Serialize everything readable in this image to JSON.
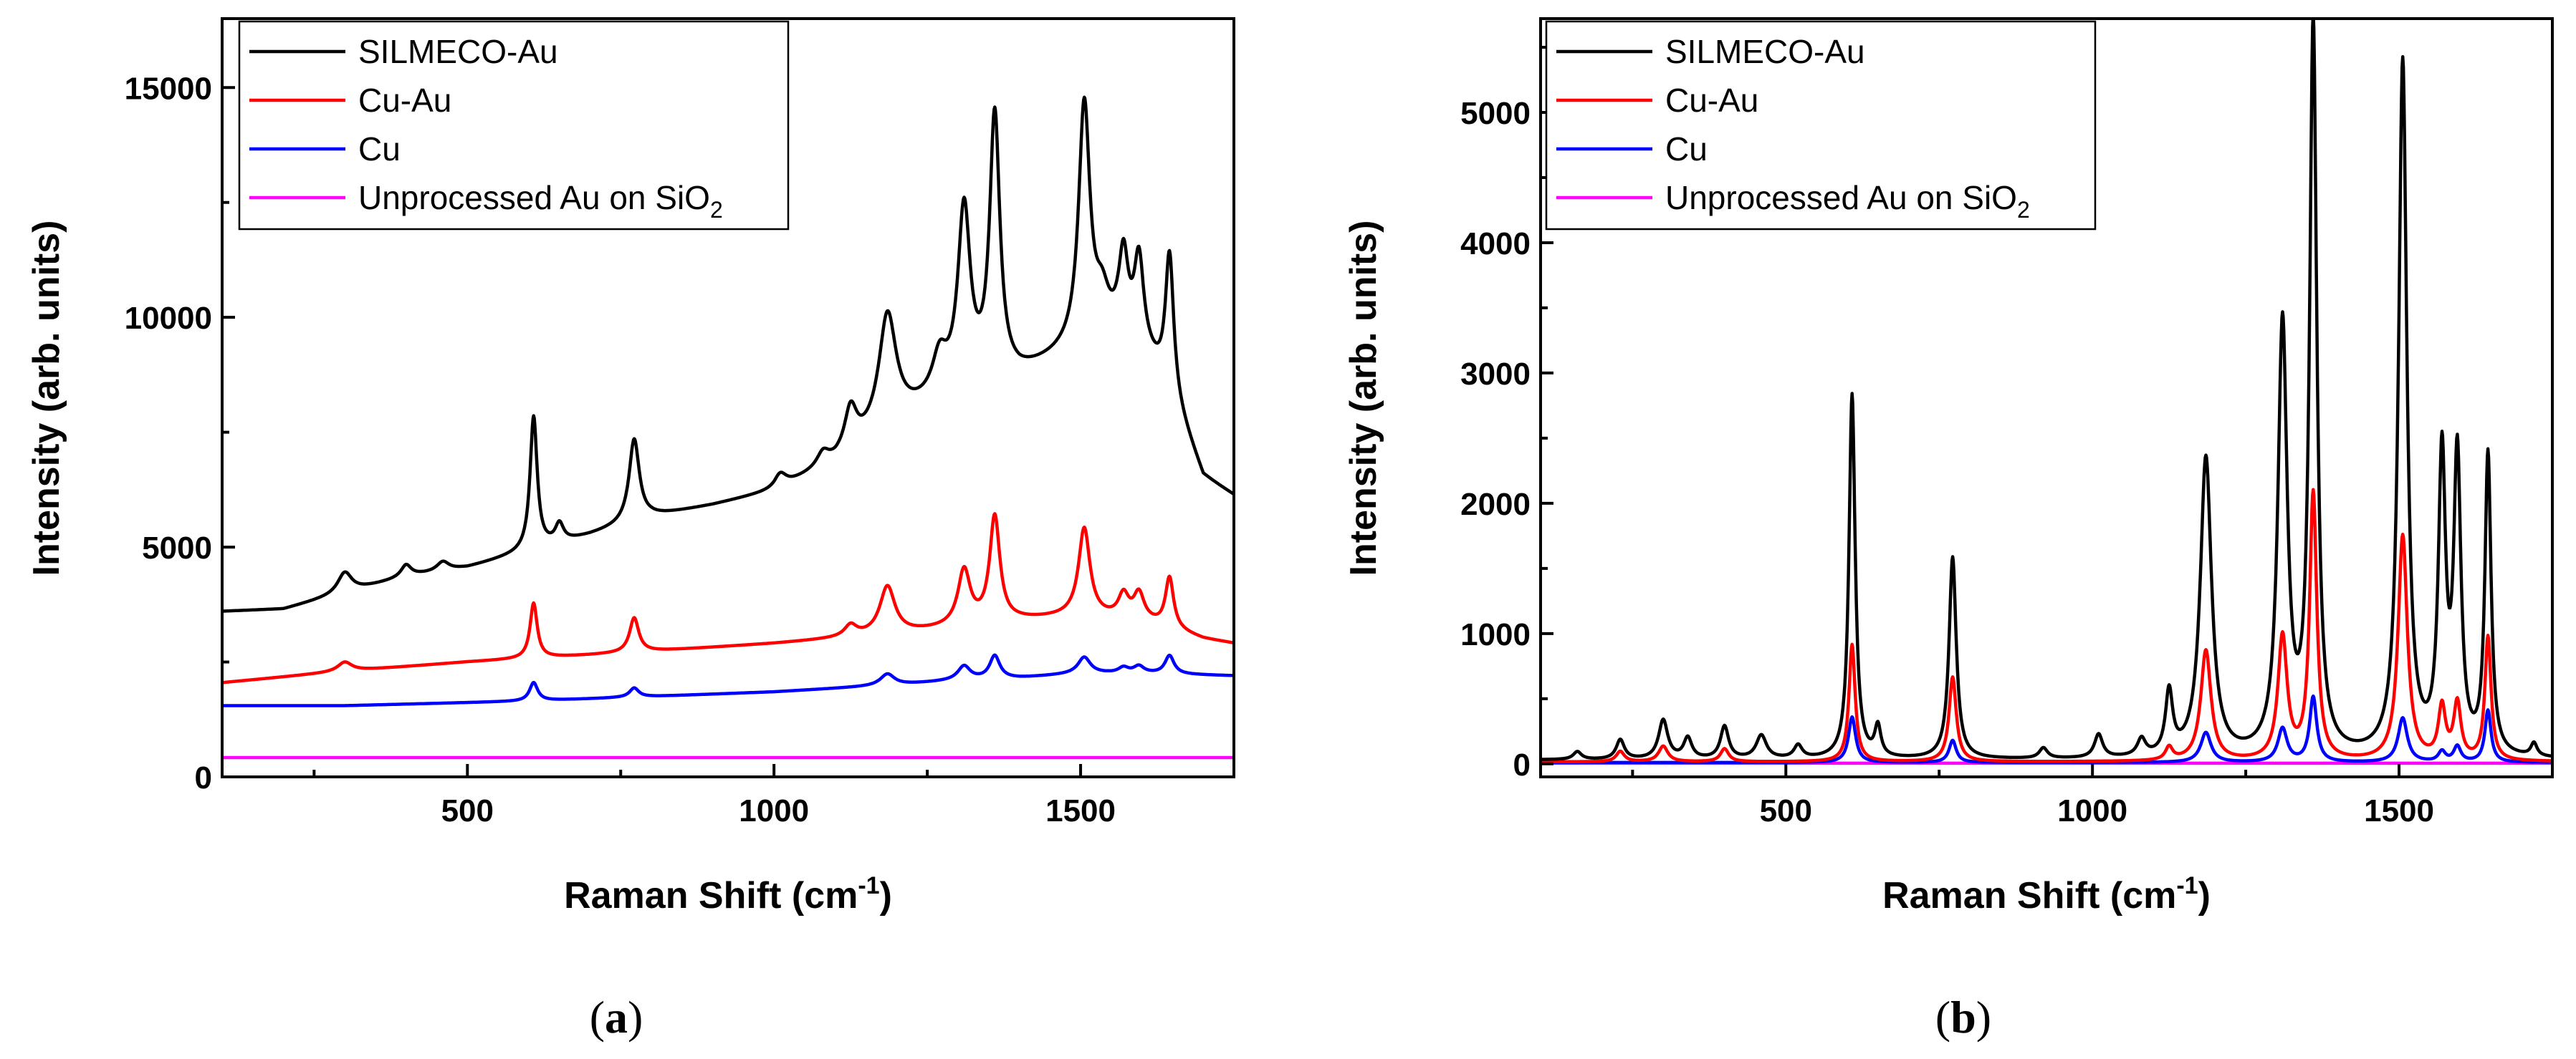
{
  "chart_data": [
    {
      "type": "line",
      "panel": "a",
      "panel_label": "(a)",
      "xlabel": "Raman Shift (cm",
      "xlabel_sup": "-1",
      "xlabel_end": ")",
      "ylabel": "Intensity (arb. units)",
      "xlim": [
        100,
        1750
      ],
      "ylim": [
        0,
        16500
      ],
      "xticks": [
        500,
        1000,
        1500
      ],
      "xtick_labels": [
        "500",
        "1000",
        "1500"
      ],
      "yticks": [
        0,
        5000,
        10000,
        15000
      ],
      "ytick_labels": [
        "0",
        "5000",
        "10000",
        "15000"
      ],
      "legend_position": "top-left",
      "series": [
        {
          "name": "SILMECO-Au",
          "color": "#000000",
          "baseline": [
            [
              100,
              3600
            ],
            [
              200,
              3650
            ],
            [
              300,
              4000
            ],
            [
              400,
              4350
            ],
            [
              500,
              4550
            ],
            [
              600,
              4900
            ],
            [
              700,
              5250
            ],
            [
              800,
              5650
            ],
            [
              900,
              5900
            ],
            [
              1000,
              6200
            ],
            [
              1100,
              6800
            ],
            [
              1200,
              7700
            ],
            [
              1300,
              8400
            ],
            [
              1400,
              8700
            ],
            [
              1500,
              9300
            ],
            [
              1560,
              9550
            ],
            [
              1600,
              9300
            ],
            [
              1650,
              8200
            ],
            [
              1700,
              6500
            ],
            [
              1750,
              6100
            ]
          ],
          "peaks": [
            [
              608,
              2900,
              7
            ],
            [
              650,
              400,
              8
            ],
            [
              772,
              1800,
              10
            ],
            [
              300,
              450,
              14
            ],
            [
              400,
              250,
              10
            ],
            [
              460,
              200,
              12
            ],
            [
              1010,
              300,
              12
            ],
            [
              1080,
              300,
              12
            ],
            [
              1125,
              900,
              12
            ],
            [
              1185,
              2450,
              17
            ],
            [
              1270,
              800,
              14
            ],
            [
              1310,
              3800,
              12
            ],
            [
              1360,
              5700,
              10
            ],
            [
              1506,
              5200,
              11
            ],
            [
              1535,
              800,
              14
            ],
            [
              1570,
              1700,
              9
            ],
            [
              1595,
              1800,
              9
            ],
            [
              1645,
              3000,
              8
            ]
          ]
        },
        {
          "name": "Cu-Au",
          "color": "#ff0000",
          "baseline": [
            [
              100,
              2050
            ],
            [
              300,
              2300
            ],
            [
              500,
              2500
            ],
            [
              700,
              2650
            ],
            [
              1000,
              2900
            ],
            [
              1200,
              3100
            ],
            [
              1300,
              3250
            ],
            [
              1400,
              3400
            ],
            [
              1500,
              3500
            ],
            [
              1600,
              3400
            ],
            [
              1650,
              3200
            ],
            [
              1700,
              3000
            ],
            [
              1750,
              2900
            ]
          ],
          "peaks": [
            [
              608,
              1200,
              7
            ],
            [
              772,
              750,
              9
            ],
            [
              300,
              200,
              14
            ],
            [
              1125,
              250,
              12
            ],
            [
              1185,
              1050,
              15
            ],
            [
              1310,
              1200,
              12
            ],
            [
              1360,
              2300,
              10
            ],
            [
              1506,
              1900,
              11
            ],
            [
              1570,
              500,
              10
            ],
            [
              1595,
              550,
              10
            ],
            [
              1645,
              1100,
              8
            ]
          ]
        },
        {
          "name": "Cu",
          "color": "#0000ff",
          "baseline": [
            [
              100,
              1550
            ],
            [
              300,
              1550
            ],
            [
              600,
              1650
            ],
            [
              800,
              1750
            ],
            [
              1000,
              1850
            ],
            [
              1200,
              2000
            ],
            [
              1300,
              2100
            ],
            [
              1400,
              2150
            ],
            [
              1500,
              2250
            ],
            [
              1600,
              2250
            ],
            [
              1750,
              2200
            ]
          ],
          "peaks": [
            [
              608,
              400,
              8
            ],
            [
              772,
              200,
              9
            ],
            [
              1185,
              250,
              14
            ],
            [
              1310,
              300,
              12
            ],
            [
              1360,
              500,
              10
            ],
            [
              1506,
              350,
              12
            ],
            [
              1570,
              120,
              10
            ],
            [
              1595,
              150,
              10
            ],
            [
              1645,
              400,
              9
            ]
          ]
        },
        {
          "name": "Unprocessed Au on SiO",
          "name_sub": "2",
          "color": "#ff00ff",
          "baseline": [
            [
              100,
              420
            ],
            [
              1750,
              420
            ]
          ],
          "peaks": []
        }
      ]
    },
    {
      "type": "line",
      "panel": "b",
      "panel_label": "(b)",
      "xlabel": "Raman Shift (cm",
      "xlabel_sup": "-1",
      "xlabel_end": ")",
      "ylabel": "Intensity (arb. units)",
      "xlim": [
        100,
        1750
      ],
      "ylim": [
        -100,
        5720
      ],
      "xticks": [
        500,
        1000,
        1500
      ],
      "xtick_labels": [
        "500",
        "1000",
        "1500"
      ],
      "yticks": [
        0,
        1000,
        2000,
        3000,
        4000,
        5000
      ],
      "ytick_labels": [
        "0",
        "1000",
        "2000",
        "3000",
        "4000",
        "5000"
      ],
      "legend_position": "top-left",
      "series": [
        {
          "name": "SILMECO-Au",
          "color": "#000000",
          "baseline": [
            [
              100,
              30
            ],
            [
              1750,
              30
            ]
          ],
          "peaks": [
            [
              160,
              60,
              8
            ],
            [
              230,
              150,
              8
            ],
            [
              300,
              300,
              9
            ],
            [
              340,
              160,
              8
            ],
            [
              400,
              250,
              8
            ],
            [
              460,
              180,
              10
            ],
            [
              520,
              100,
              8
            ],
            [
              608,
              2800,
              6
            ],
            [
              650,
              230,
              6
            ],
            [
              772,
              1550,
              7
            ],
            [
              920,
              80,
              8
            ],
            [
              1010,
              180,
              8
            ],
            [
              1080,
              130,
              8
            ],
            [
              1125,
              480,
              7
            ],
            [
              1185,
              2300,
              11
            ],
            [
              1310,
              3300,
              9
            ],
            [
              1360,
              5600,
              7
            ],
            [
              1506,
              5330,
              8
            ],
            [
              1570,
              2250,
              7
            ],
            [
              1595,
              2250,
              7
            ],
            [
              1645,
              2300,
              6
            ],
            [
              1720,
              100,
              6
            ]
          ]
        },
        {
          "name": "Cu-Au",
          "color": "#ff0000",
          "baseline": [
            [
              100,
              15
            ],
            [
              1750,
              15
            ]
          ],
          "peaks": [
            [
              230,
              80,
              8
            ],
            [
              300,
              120,
              9
            ],
            [
              400,
              100,
              8
            ],
            [
              608,
              900,
              6
            ],
            [
              772,
              650,
              7
            ],
            [
              1125,
              100,
              7
            ],
            [
              1185,
              850,
              10
            ],
            [
              1310,
              950,
              9
            ],
            [
              1360,
              2050,
              7
            ],
            [
              1506,
              1730,
              9
            ],
            [
              1570,
              400,
              7
            ],
            [
              1595,
              430,
              7
            ],
            [
              1645,
              950,
              6
            ]
          ]
        },
        {
          "name": "Cu",
          "color": "#0000ff",
          "baseline": [
            [
              100,
              10
            ],
            [
              1750,
              10
            ]
          ],
          "peaks": [
            [
              608,
              350,
              7
            ],
            [
              772,
              170,
              7
            ],
            [
              1185,
              230,
              10
            ],
            [
              1310,
              260,
              9
            ],
            [
              1360,
              500,
              7
            ],
            [
              1506,
              340,
              9
            ],
            [
              1570,
              80,
              7
            ],
            [
              1595,
              120,
              7
            ],
            [
              1645,
              400,
              6
            ]
          ]
        },
        {
          "name": "Unprocessed Au on SiO",
          "name_sub": "2",
          "color": "#ff00ff",
          "baseline": [
            [
              100,
              5
            ],
            [
              1750,
              5
            ]
          ],
          "peaks": []
        }
      ]
    }
  ]
}
